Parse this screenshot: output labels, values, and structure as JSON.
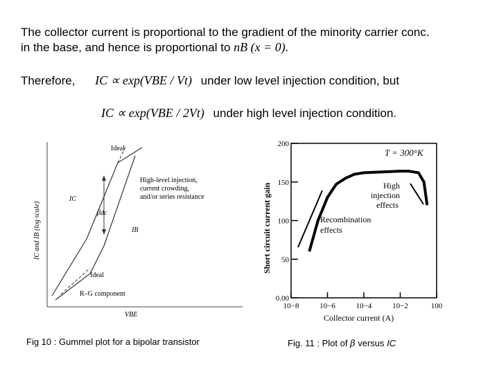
{
  "text": {
    "line1": "The collector current is proportional to the gradient of the minority carrier conc.",
    "line2_text": "in the base, and hence is proportional to",
    "line2_math": "nB (x = 0).",
    "line3_label": "Therefore,",
    "line3_math": "IC ∝ exp(VBE / Vt)",
    "line3_rest": "under low level injection condition, but",
    "line4_math": "IC ∝ exp(VBE / 2Vt)",
    "line4_rest": "under high level injection condition."
  },
  "gummel": {
    "ideal_top": "Ideal",
    "hli_1": "High-level injection,",
    "hli_2": "current crowding,",
    "hli_3": "and/or series resistance",
    "ic": "IC",
    "beta": "βdc",
    "ib": "IB",
    "ideal_bottom": "Ideal",
    "rg": "R–G component",
    "ylabel": "IC and IB (log scale)",
    "xlabel": "VBE"
  },
  "chart_data": {
    "type": "line",
    "title": "",
    "annotation_temp": "T = 300°K",
    "annotation_high": [
      "High",
      "injection",
      "effects"
    ],
    "annotation_recomb": [
      "Recombination",
      "effects"
    ],
    "xlabel": "Collector current (A)",
    "ylabel": "Short circuit current gain",
    "xscale": "log",
    "x_ticks": [
      "10−8",
      "10−6",
      "10−4",
      "10−2",
      "100"
    ],
    "y_ticks": [
      "0.00",
      "50",
      "100",
      "150",
      "200"
    ],
    "xlim": [
      1e-08,
      1
    ],
    "ylim": [
      0,
      200
    ],
    "series": [
      {
        "x": [
          1e-07,
          3e-07,
          1e-06,
          3e-06,
          1e-05,
          3e-05,
          0.0001,
          0.001,
          0.01,
          0.03,
          0.1,
          0.2,
          0.3
        ],
        "y": [
          60,
          100,
          130,
          147,
          155,
          160,
          162,
          163,
          164,
          164,
          162,
          150,
          120
        ]
      }
    ]
  },
  "captions": {
    "fig10": "Fig 10 : Gummel plot for a bipolar transistor",
    "fig11_pre": "Fig. 11 : Plot of",
    "fig11_beta": "β",
    "fig11_mid": "versus",
    "fig11_ic": "IC"
  }
}
